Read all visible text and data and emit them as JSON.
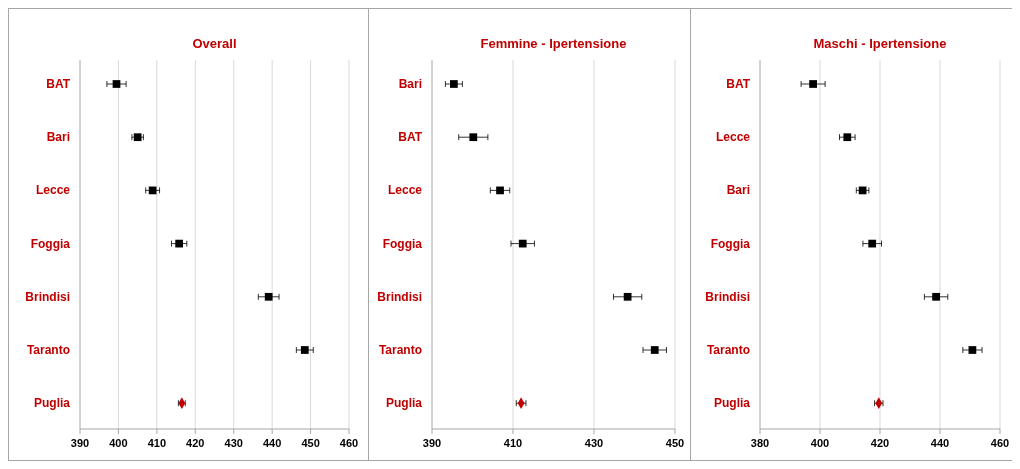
{
  "chart_data": [
    {
      "type": "scatter",
      "orientation": "horizontal",
      "title": "Overall",
      "categories": [
        "BAT",
        "Bari",
        "Lecce",
        "Foggia",
        "Brindisi",
        "Taranto",
        "Puglia"
      ],
      "xlim": [
        390,
        460
      ],
      "xticks": [
        390,
        400,
        410,
        420,
        430,
        440,
        450,
        460
      ],
      "grid": "x",
      "series": [
        {
          "color": "#000000",
          "marker": "square",
          "values": [
            399.5,
            405,
            408.9,
            415.8,
            439.1,
            448.5,
            null
          ],
          "errors": [
            2.5,
            1.5,
            1.8,
            2,
            2.7,
            2.2,
            null
          ]
        },
        {
          "color": "#c00000",
          "marker": "diamond",
          "values": [
            null,
            null,
            null,
            null,
            null,
            null,
            416.5
          ],
          "errors": [
            null,
            null,
            null,
            null,
            null,
            null,
            0.9
          ]
        }
      ]
    },
    {
      "type": "scatter",
      "orientation": "horizontal",
      "title": "Femmine - Ipertensione",
      "categories": [
        "Bari",
        "BAT",
        "Lecce",
        "Foggia",
        "Brindisi",
        "Taranto",
        "Puglia"
      ],
      "xlim": [
        390,
        450
      ],
      "xticks": [
        390,
        410,
        430,
        450
      ],
      "grid": "x",
      "series": [
        {
          "color": "#000000",
          "marker": "square",
          "values": [
            395.4,
            400.2,
            406.8,
            412.4,
            438.3,
            445,
            null
          ],
          "errors": [
            2.1,
            3.6,
            2.4,
            2.9,
            3.5,
            2.9,
            null
          ]
        },
        {
          "color": "#c00000",
          "marker": "diamond",
          "values": [
            null,
            null,
            null,
            null,
            null,
            null,
            412
          ],
          "errors": [
            null,
            null,
            null,
            null,
            null,
            null,
            1.2
          ]
        }
      ]
    },
    {
      "type": "scatter",
      "orientation": "horizontal",
      "title": "Maschi - Ipertensione",
      "categories": [
        "BAT",
        "Lecce",
        "Bari",
        "Foggia",
        "Brindisi",
        "Taranto",
        "Puglia"
      ],
      "xlim": [
        380,
        460
      ],
      "xticks": [
        380,
        400,
        420,
        440,
        460
      ],
      "grid": "x",
      "series": [
        {
          "color": "#000000",
          "marker": "square",
          "values": [
            397.7,
            409.1,
            414.2,
            417.4,
            438.7,
            450.8,
            null
          ],
          "errors": [
            4,
            2.6,
            2.1,
            3.1,
            3.9,
            3.2,
            null
          ]
        },
        {
          "color": "#c00000",
          "marker": "diamond",
          "values": [
            null,
            null,
            null,
            null,
            null,
            null,
            419.6
          ],
          "errors": [
            null,
            null,
            null,
            null,
            null,
            null,
            1.4
          ]
        }
      ]
    }
  ]
}
